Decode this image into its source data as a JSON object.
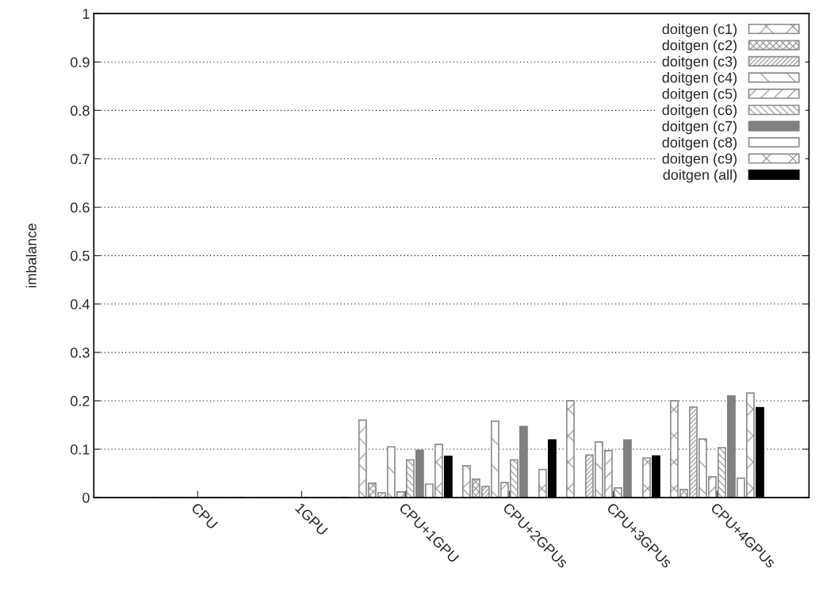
{
  "chart_data": {
    "type": "bar",
    "ylabel": "imbalance",
    "categories": [
      "CPU",
      "1GPU",
      "CPU+1GPU",
      "CPU+2GPUs",
      "CPU+3GPUs",
      "CPU+4GPUs"
    ],
    "series": [
      {
        "name": "doitgen (c1)",
        "color": "#8c8c8c",
        "values": [
          0,
          0,
          0.16,
          0.066,
          0.2,
          0.2
        ]
      },
      {
        "name": "doitgen (c2)",
        "color": "#8c8c8c",
        "values": [
          0,
          0,
          0.03,
          0.038,
          0,
          0.017
        ]
      },
      {
        "name": "doitgen (c3)",
        "color": "#8c8c8c",
        "values": [
          0,
          0,
          0.01,
          0.023,
          0.088,
          0.187
        ]
      },
      {
        "name": "doitgen (c4)",
        "color": "#8c8c8c",
        "values": [
          0,
          0,
          0.105,
          0.158,
          0.115,
          0.121
        ]
      },
      {
        "name": "doitgen (c5)",
        "color": "#8c8c8c",
        "values": [
          0,
          0,
          0.012,
          0.031,
          0.097,
          0.043
        ]
      },
      {
        "name": "doitgen (c6)",
        "color": "#8c8c8c",
        "values": [
          0,
          0,
          0.078,
          0.078,
          0.02,
          0.103
        ]
      },
      {
        "name": "doitgen (c7)",
        "color": "#808080",
        "values": [
          0,
          0,
          0.098,
          0.147,
          0.119,
          0.21
        ]
      },
      {
        "name": "doitgen (c8)",
        "color": "#8c8c8c",
        "values": [
          0,
          0,
          0.028,
          null,
          0,
          0.04
        ]
      },
      {
        "name": "doitgen (c9)",
        "color": "#8c8c8c",
        "values": [
          0,
          0,
          0.11,
          0.058,
          0.082,
          0.216
        ]
      },
      {
        "name": "doitgen (all)",
        "color": "#000000",
        "values": [
          0,
          0,
          0.085,
          0.119,
          0.086,
          0.186
        ]
      }
    ],
    "ylim": [
      0,
      1
    ],
    "yticks": [
      0,
      0.1,
      0.2,
      0.3,
      0.4,
      0.5,
      0.6,
      0.7,
      0.8,
      0.9,
      1
    ],
    "grid": "y",
    "legend": "top right"
  }
}
